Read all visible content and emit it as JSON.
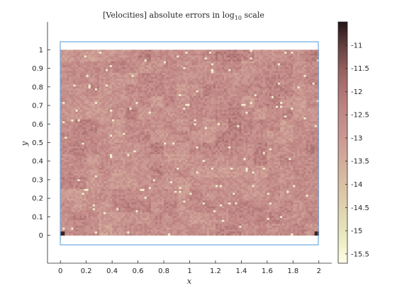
{
  "chart_data": {
    "type": "heatmap",
    "title": "[Velocities] absolute errors in log",
    "title_subscript": "10",
    "title_suffix": " scale",
    "xlabel": "x",
    "ylabel": "y",
    "xlim": [
      -0.1,
      2.1
    ],
    "ylim": [
      -0.15,
      1.15
    ],
    "x_domain": [
      0,
      2
    ],
    "y_domain": [
      0,
      1
    ],
    "x_ticks": [
      0,
      0.2,
      0.4,
      0.6,
      0.8,
      1,
      1.2,
      1.4,
      1.6,
      1.8,
      2
    ],
    "x_tick_labels": [
      "0",
      "0.2",
      "0.4",
      "0.6",
      "0.8",
      "1",
      "1.2",
      "1.4",
      "1.6",
      "1.8",
      "2"
    ],
    "y_ticks": [
      0,
      0.1,
      0.2,
      0.3,
      0.4,
      0.5,
      0.6,
      0.7,
      0.8,
      0.9,
      1
    ],
    "y_tick_labels": [
      "0",
      "0.1",
      "0.2",
      "0.3",
      "0.4",
      "0.5",
      "0.6",
      "0.7",
      "0.8",
      "0.9",
      "1"
    ],
    "colorbar": {
      "range": [
        -15.7,
        -10.5
      ],
      "ticks": [
        -11,
        -11.5,
        -12,
        -12.5,
        -13,
        -13.5,
        -14,
        -14.5,
        -15,
        -15.5
      ],
      "tick_labels": [
        "-11",
        "-11.5",
        "-12",
        "-12.5",
        "-13",
        "-13.5",
        "-14",
        "-14.5",
        "-15",
        "-15.5"
      ],
      "colormap": "pink"
    },
    "value_range_typical": [
      -13.5,
      -12.2
    ],
    "grid": false,
    "domain_border_color": "#6fa8dc"
  }
}
